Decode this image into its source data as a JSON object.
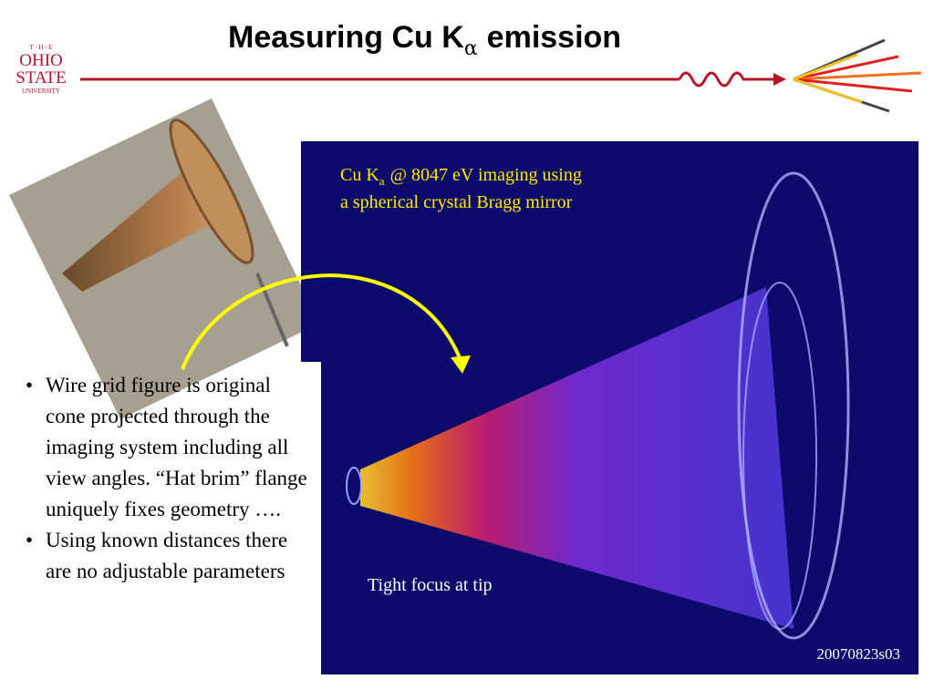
{
  "title": {
    "main": "Measuring Cu K",
    "subscript": "α",
    "suffix": "emission"
  },
  "logo": {
    "the": "T · H · E",
    "line1": "OHIO",
    "line2": "STATE",
    "line3": "UNIVERSITY"
  },
  "image": {
    "caption": {
      "prefix": "Cu K",
      "subscript": "a",
      "suffix": "@ 8047 eV imaging using",
      "line2": "a spherical crystal Bragg mirror"
    },
    "annotation": "Tight focus at tip",
    "id": "20070823s03"
  },
  "bullets": [
    "Wire grid figure is original cone projected through the imaging system including all view angles. “Hat brim” flange uniquely fixes geometry ….",
    "Using known distances there are no adjustable parameters"
  ]
}
